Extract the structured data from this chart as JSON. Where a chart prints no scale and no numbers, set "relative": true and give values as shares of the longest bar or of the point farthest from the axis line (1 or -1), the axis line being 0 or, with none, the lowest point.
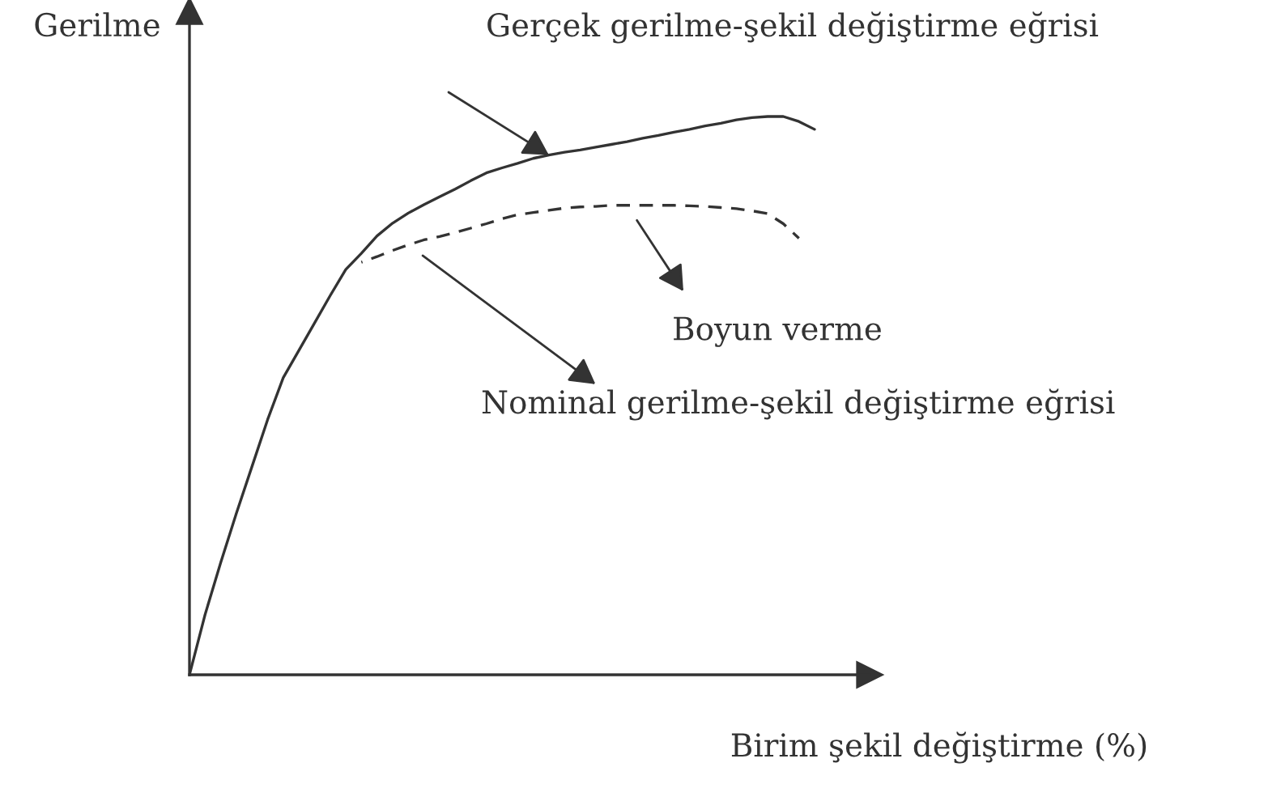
{
  "chart_data": {
    "type": "line",
    "relative": true,
    "xlabel": "Birim şekil değiştirme (%)",
    "ylabel": "Gerilme",
    "categories": [
      null,
      null,
      null,
      null,
      null,
      null,
      null,
      null,
      null,
      null,
      null,
      null,
      null,
      null,
      null,
      null,
      null,
      null,
      null,
      null,
      null,
      null,
      null,
      null,
      null,
      null,
      null,
      null,
      null,
      null,
      null,
      null,
      null,
      null,
      null,
      null,
      null,
      null,
      null,
      null,
      null
    ],
    "series": [
      {
        "name": "Gerçek gerilme-şekil değiştirme eğrisi",
        "color": "#333333",
        "line_style": "solid",
        "values": [
          0,
          0.108,
          0.201,
          0.289,
          0.373,
          0.457,
          0.532,
          0.581,
          0.63,
          0.679,
          0.726,
          0.755,
          0.786,
          0.809,
          0.827,
          0.842,
          0.856,
          0.87,
          0.885,
          0.899,
          0.908,
          0.916,
          0.925,
          0.931,
          0.936,
          0.94,
          0.945,
          0.95,
          0.955,
          0.961,
          0.966,
          0.972,
          0.977,
          0.983,
          0.988,
          0.994,
          0.998,
          1,
          1,
          0.991,
          0.977
        ]
      },
      {
        "name": "Nominal gerilme-şekil değiştirme eğrisi",
        "color": "#333333",
        "line_style": "dashed",
        "values": [
          null,
          null,
          null,
          null,
          null,
          null,
          null,
          null,
          null,
          null,
          null,
          0.739,
          0.749,
          0.76,
          0.77,
          0.779,
          0.785,
          0.792,
          0.8,
          0.808,
          0.817,
          0.824,
          0.828,
          0.832,
          0.836,
          0.838,
          0.839,
          0.841,
          0.841,
          0.841,
          0.841,
          0.841,
          0.84,
          0.839,
          0.837,
          0.835,
          0.831,
          0.826,
          0.808,
          0.782,
          null
        ]
      }
    ],
    "annotations": [
      "Boyun verme"
    ]
  }
}
